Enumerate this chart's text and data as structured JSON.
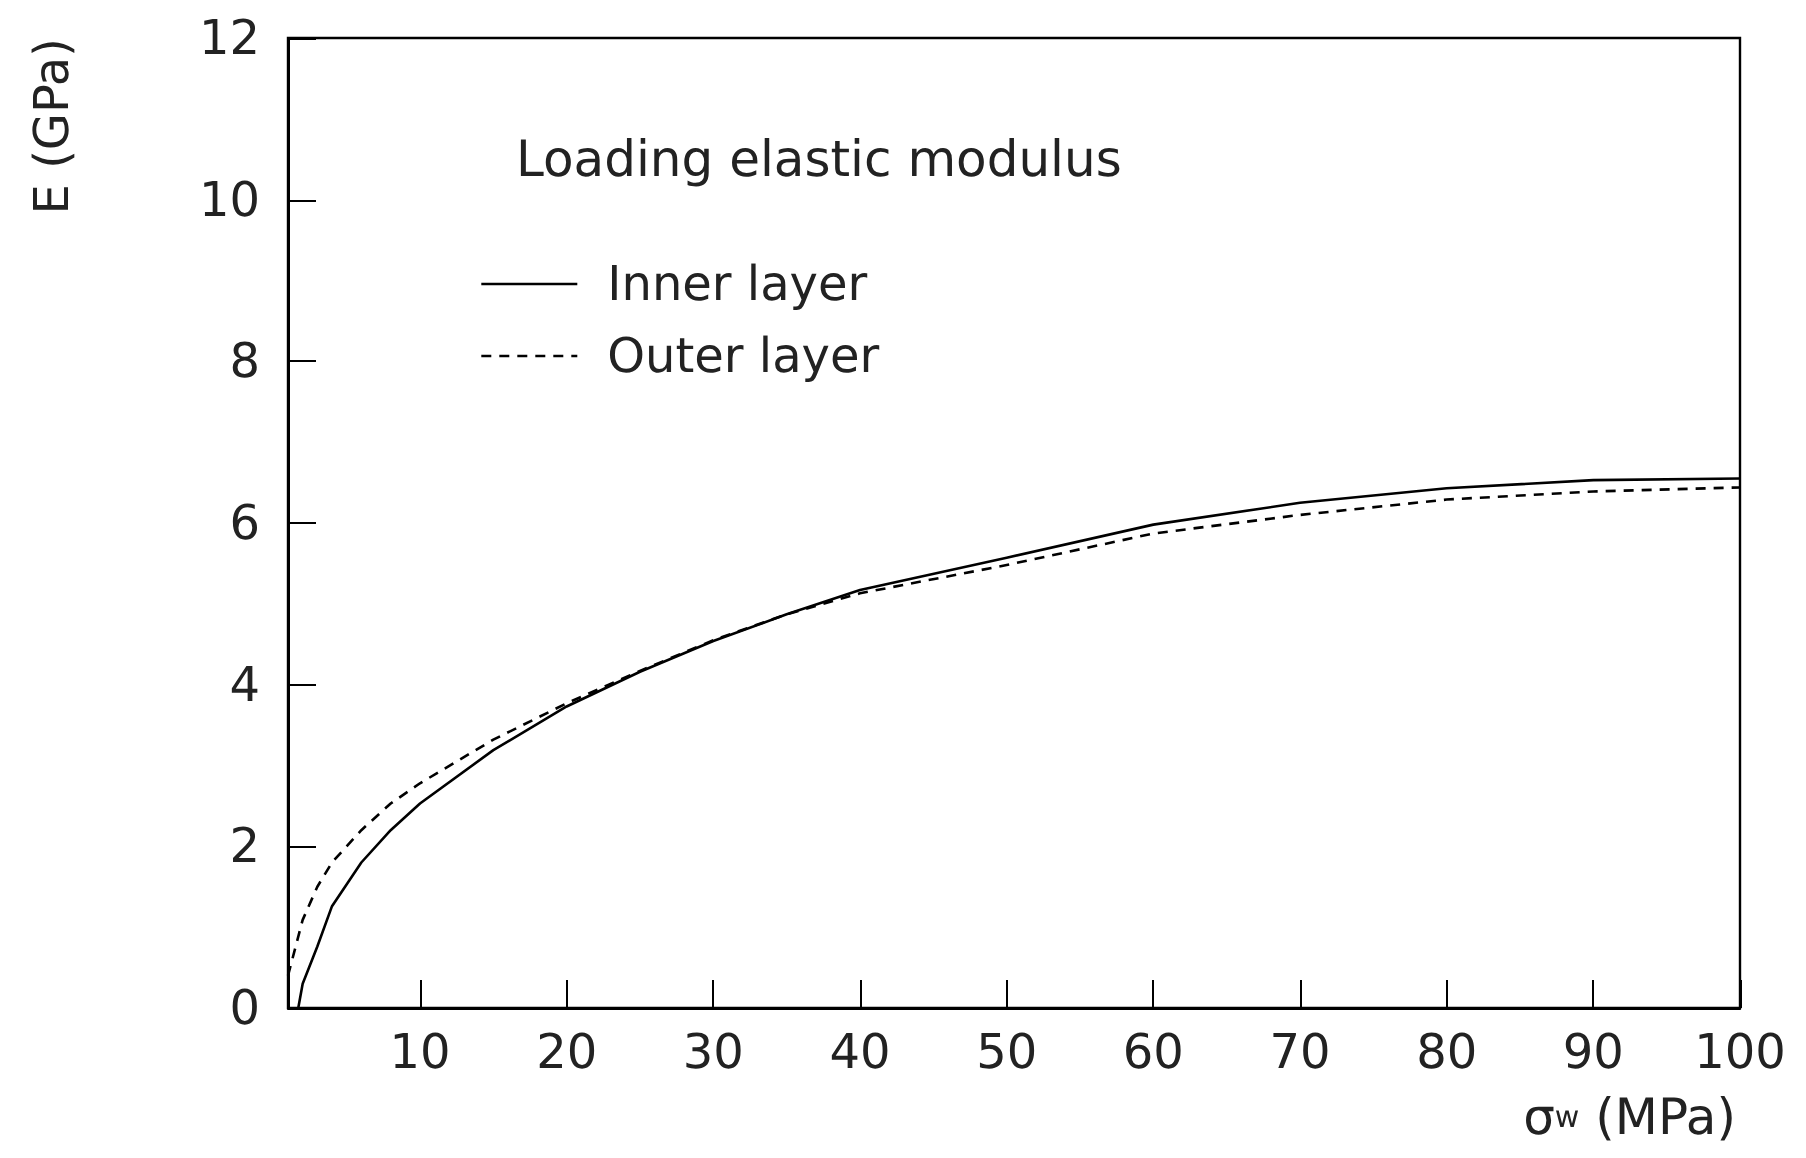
{
  "chart_data": {
    "type": "line",
    "title": "Loading elastic modulus",
    "xlabel": "σ$_{w}$ (MPa)",
    "ylabel": "E (GPa)",
    "xlim": [
      1,
      100
    ],
    "xticks": [
      10,
      20,
      30,
      40,
      50,
      60,
      70,
      80,
      90,
      100
    ],
    "ylim": [
      0,
      12
    ],
    "yticks": [
      0,
      2,
      4,
      6,
      8,
      10,
      12
    ],
    "grid": false,
    "legend": "top left",
    "marker": "none",
    "series": [
      {
        "name": "Inner layer",
        "color": "#000000",
        "line_style": "solid",
        "x": [
          1.7,
          2,
          3,
          4,
          6,
          8,
          10,
          15,
          20,
          25,
          30,
          35,
          40,
          50,
          60,
          70,
          80,
          90,
          100
        ],
        "values": [
          0,
          0.3,
          0.76,
          1.26,
          1.8,
          2.2,
          2.53,
          3.19,
          3.73,
          4.16,
          4.54,
          4.87,
          5.17,
          5.57,
          5.98,
          6.25,
          6.43,
          6.53,
          6.55
        ]
      },
      {
        "name": "Outer layer",
        "color": "#000000",
        "line_style": "dashed",
        "x": [
          1,
          2,
          3,
          4,
          6,
          8,
          10,
          15,
          20,
          25,
          30,
          35,
          40,
          50,
          60,
          70,
          80,
          90,
          100
        ],
        "values": [
          0.4,
          1.09,
          1.5,
          1.8,
          2.2,
          2.53,
          2.78,
          3.32,
          3.77,
          4.17,
          4.55,
          4.87,
          5.13,
          5.48,
          5.87,
          6.1,
          6.29,
          6.39,
          6.44
        ]
      }
    ]
  }
}
